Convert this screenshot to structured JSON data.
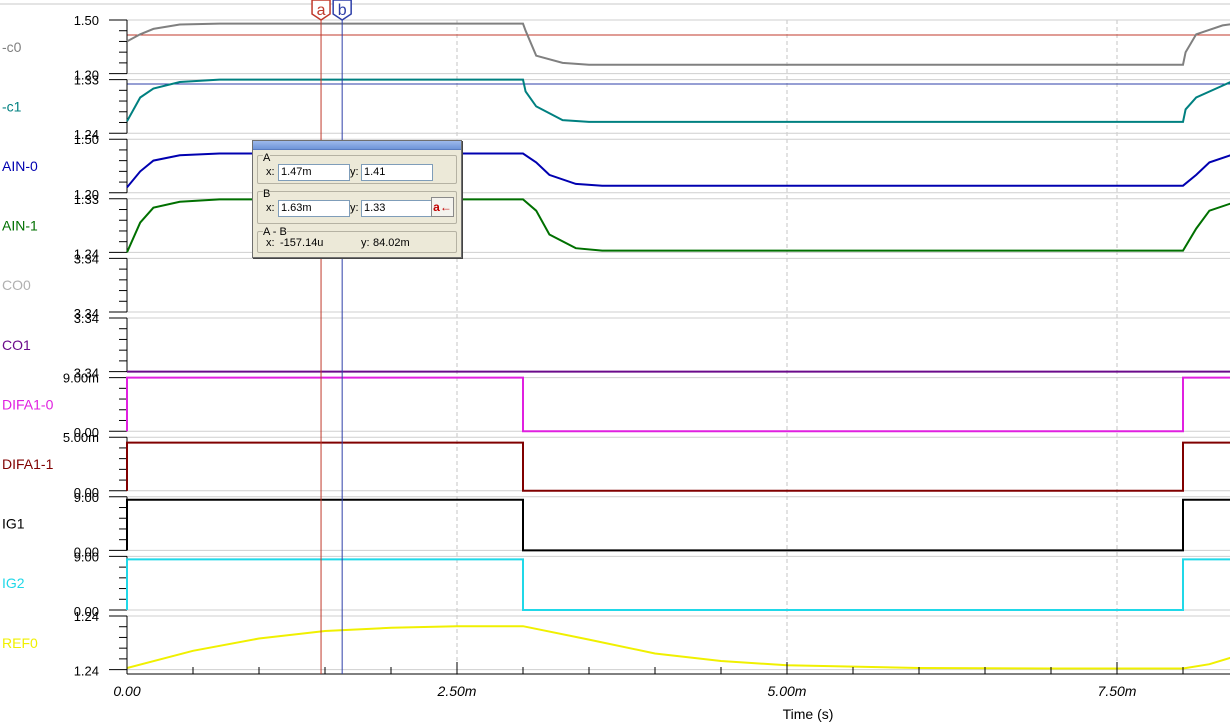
{
  "chart_data": {
    "type": "line",
    "x_axis": {
      "title": "Time (s)",
      "range": [
        0,
        0.0084
      ],
      "ticks": [
        0,
        0.0025,
        0.005,
        0.0075
      ],
      "tick_labels": [
        "0.00",
        "2.50m",
        "5.00m",
        "7.50m"
      ]
    },
    "cursors": [
      {
        "name": "a",
        "x": 0.00147,
        "color": "#c0392b"
      },
      {
        "name": "b",
        "x": 0.00163,
        "color": "#2e3fa8"
      }
    ],
    "series": [
      {
        "name": "-c0",
        "color": "#808080",
        "y_top": "1.50",
        "y_bottom": "1.20",
        "range": [
          1.2,
          1.5
        ],
        "points": [
          [
            0,
            1.38
          ],
          [
            0.0001,
            1.42
          ],
          [
            0.0002,
            1.45
          ],
          [
            0.0004,
            1.475
          ],
          [
            0.0007,
            1.48
          ],
          [
            0.003,
            1.48
          ],
          [
            0.00302,
            1.44
          ],
          [
            0.0031,
            1.3
          ],
          [
            0.0033,
            1.26
          ],
          [
            0.0035,
            1.25
          ],
          [
            0.008,
            1.25
          ],
          [
            0.00802,
            1.32
          ],
          [
            0.0081,
            1.42
          ],
          [
            0.0083,
            1.47
          ],
          [
            0.0084,
            1.48
          ]
        ]
      },
      {
        "name": "-c1",
        "color": "#008080",
        "y_top": "1.33",
        "y_bottom": "1.24",
        "range": [
          1.24,
          1.33
        ],
        "points": [
          [
            0,
            1.26
          ],
          [
            0.0001,
            1.3
          ],
          [
            0.0002,
            1.315
          ],
          [
            0.0004,
            1.326
          ],
          [
            0.0007,
            1.33
          ],
          [
            0.003,
            1.33
          ],
          [
            0.00302,
            1.31
          ],
          [
            0.0031,
            1.285
          ],
          [
            0.0033,
            1.262
          ],
          [
            0.0035,
            1.259
          ],
          [
            0.008,
            1.259
          ],
          [
            0.00802,
            1.28
          ],
          [
            0.0081,
            1.3
          ],
          [
            0.0083,
            1.32
          ],
          [
            0.0084,
            1.33
          ]
        ]
      },
      {
        "name": "AIN-0",
        "color": "#0000b0",
        "y_top": "1.50",
        "y_bottom": "1.20",
        "range": [
          1.2,
          1.5
        ],
        "points": [
          [
            0,
            1.23
          ],
          [
            0.0001,
            1.32
          ],
          [
            0.0002,
            1.38
          ],
          [
            0.0004,
            1.41
          ],
          [
            0.0007,
            1.42
          ],
          [
            0.003,
            1.42
          ],
          [
            0.0031,
            1.37
          ],
          [
            0.0032,
            1.3
          ],
          [
            0.0034,
            1.25
          ],
          [
            0.0036,
            1.24
          ],
          [
            0.008,
            1.24
          ],
          [
            0.0081,
            1.3
          ],
          [
            0.0082,
            1.37
          ],
          [
            0.0084,
            1.42
          ]
        ]
      },
      {
        "name": "AIN-1",
        "color": "#007000",
        "y_top": "1.33",
        "y_bottom": "1.24",
        "range": [
          1.24,
          1.33
        ],
        "points": [
          [
            0,
            1.24
          ],
          [
            0.0001,
            1.29
          ],
          [
            0.0002,
            1.315
          ],
          [
            0.0004,
            1.325
          ],
          [
            0.0007,
            1.329
          ],
          [
            0.003,
            1.329
          ],
          [
            0.0031,
            1.31
          ],
          [
            0.0032,
            1.27
          ],
          [
            0.0034,
            1.247
          ],
          [
            0.0036,
            1.243
          ],
          [
            0.008,
            1.243
          ],
          [
            0.0081,
            1.28
          ],
          [
            0.0082,
            1.31
          ],
          [
            0.0084,
            1.325
          ]
        ]
      },
      {
        "name": "CO0",
        "color": "#b0b0b0",
        "y_top": "3.34",
        "y_bottom": "3.34",
        "range": [
          0,
          1
        ],
        "points": []
      },
      {
        "name": "CO1",
        "color": "#6a0a8a",
        "y_top": "3.34",
        "y_bottom": "3.34",
        "range": [
          0,
          1
        ],
        "points": [
          [
            0,
            0
          ],
          [
            0.0084,
            0
          ]
        ]
      },
      {
        "name": "DIFA1-0",
        "color": "#e020e0",
        "y_top": "9.00m",
        "y_bottom": "0.00",
        "range": [
          0,
          0.009
        ],
        "points": [
          [
            0,
            0
          ],
          [
            0,
            0.009
          ],
          [
            0.003,
            0.009
          ],
          [
            0.003,
            0
          ],
          [
            0.008,
            0
          ],
          [
            0.008,
            0.009
          ],
          [
            0.0084,
            0.009
          ]
        ]
      },
      {
        "name": "DIFA1-1",
        "color": "#800000",
        "y_top": "5.00m",
        "y_bottom": "0.00",
        "range": [
          0,
          0.005
        ],
        "points": [
          [
            0,
            0
          ],
          [
            0,
            0.0045
          ],
          [
            0.003,
            0.0045
          ],
          [
            0.003,
            0
          ],
          [
            0.008,
            0
          ],
          [
            0.008,
            0.0045
          ],
          [
            0.0084,
            0.0045
          ]
        ]
      },
      {
        "name": "IG1",
        "color": "#000000",
        "y_top": "9.00",
        "y_bottom": "0.00",
        "range": [
          0,
          9
        ],
        "points": [
          [
            0,
            0
          ],
          [
            0,
            8.5
          ],
          [
            0.003,
            8.5
          ],
          [
            0.003,
            0
          ],
          [
            0.008,
            0
          ],
          [
            0.008,
            8.5
          ],
          [
            0.0084,
            8.5
          ]
        ]
      },
      {
        "name": "IG2",
        "color": "#20d8e8",
        "y_top": "9.00",
        "y_bottom": "0.00",
        "range": [
          0,
          9
        ],
        "points": [
          [
            0,
            0
          ],
          [
            0,
            8.5
          ],
          [
            0.003,
            8.5
          ],
          [
            0.003,
            0
          ],
          [
            0.008,
            0
          ],
          [
            0.008,
            8.5
          ],
          [
            0.0084,
            8.5
          ]
        ]
      },
      {
        "name": "REF0",
        "color": "#f0f000",
        "y_top": "1.24",
        "y_bottom": "1.24",
        "range": [
          0,
          1
        ],
        "points": [
          [
            0,
            0.03
          ],
          [
            0.0005,
            0.35
          ],
          [
            0.001,
            0.58
          ],
          [
            0.0015,
            0.72
          ],
          [
            0.002,
            0.78
          ],
          [
            0.0025,
            0.81
          ],
          [
            0.003,
            0.81
          ],
          [
            0.0035,
            0.56
          ],
          [
            0.004,
            0.3
          ],
          [
            0.0045,
            0.16
          ],
          [
            0.005,
            0.08
          ],
          [
            0.006,
            0.03
          ],
          [
            0.007,
            0.02
          ],
          [
            0.008,
            0.02
          ],
          [
            0.0082,
            0.1
          ],
          [
            0.0084,
            0.25
          ]
        ]
      }
    ]
  },
  "cursor_dialog": {
    "group_a": "A",
    "a_x_label": "x:",
    "a_x": "1.47m",
    "a_y_label": "y:",
    "a_y": "1.41",
    "group_b": "B",
    "b_x_label": "x:",
    "b_x": "1.63m",
    "b_y_label": "y:",
    "b_y": "1.33",
    "swap_button": "a←",
    "group_diff": "A - B",
    "diff_x_label": "x:",
    "diff_x": "-157.14u",
    "diff_y_label": "y:",
    "diff_y": "84.02m"
  }
}
